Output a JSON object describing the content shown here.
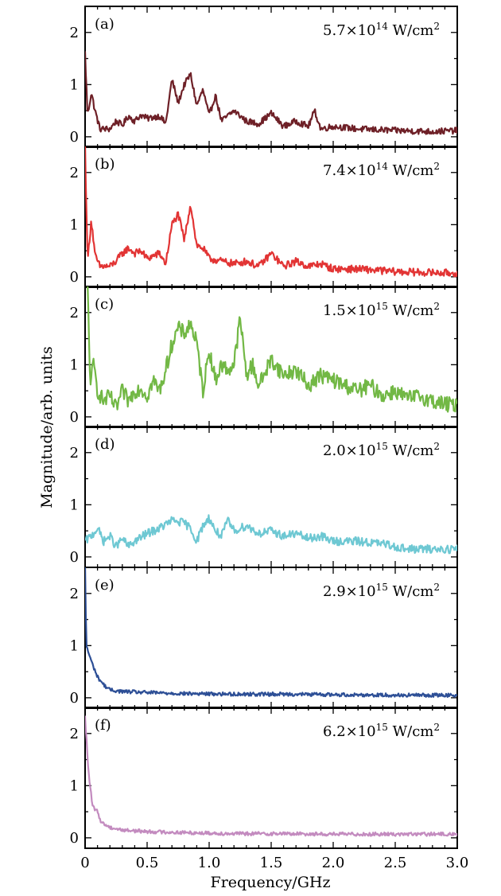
{
  "figure": {
    "ylabel": "Magnitude/arb. units",
    "xlabel": "Frequency/GHz"
  },
  "chart_data": [
    {
      "type": "line",
      "panel_label": "(a)",
      "intensity": "5.7×10",
      "intensity_exp": "14",
      "intensity_unit": " W/cm",
      "intensity_unit_exp": "2",
      "color": "#6e2027",
      "xlim": [
        0,
        3
      ],
      "ylim": [
        -0.2,
        2.5
      ],
      "x_ticks": [
        "0",
        "0.5",
        "1.0",
        "1.5",
        "2.0",
        "2.5",
        "3.0"
      ],
      "y_ticks": [
        "0",
        "1",
        "2"
      ],
      "anchors": [
        [
          0,
          1.6
        ],
        [
          0.02,
          0.4
        ],
        [
          0.05,
          0.85
        ],
        [
          0.08,
          0.5
        ],
        [
          0.12,
          0.15
        ],
        [
          0.2,
          0.15
        ],
        [
          0.25,
          0.3
        ],
        [
          0.3,
          0.22
        ],
        [
          0.35,
          0.4
        ],
        [
          0.4,
          0.3
        ],
        [
          0.45,
          0.42
        ],
        [
          0.5,
          0.35
        ],
        [
          0.6,
          0.4
        ],
        [
          0.65,
          0.25
        ],
        [
          0.7,
          1.1
        ],
        [
          0.75,
          0.65
        ],
        [
          0.8,
          1.0
        ],
        [
          0.85,
          1.2
        ],
        [
          0.9,
          0.6
        ],
        [
          0.95,
          0.9
        ],
        [
          1.0,
          0.4
        ],
        [
          1.05,
          0.8
        ],
        [
          1.1,
          0.3
        ],
        [
          1.2,
          0.5
        ],
        [
          1.3,
          0.3
        ],
        [
          1.4,
          0.25
        ],
        [
          1.5,
          0.45
        ],
        [
          1.6,
          0.2
        ],
        [
          1.7,
          0.3
        ],
        [
          1.8,
          0.2
        ],
        [
          1.85,
          0.5
        ],
        [
          1.9,
          0.15
        ],
        [
          2.0,
          0.2
        ],
        [
          2.2,
          0.15
        ],
        [
          2.5,
          0.12
        ],
        [
          2.8,
          0.1
        ],
        [
          3.0,
          0.12
        ]
      ],
      "noise": 0.06
    },
    {
      "type": "line",
      "panel_label": "(b)",
      "intensity": "7.4×10",
      "intensity_exp": "14",
      "intensity_unit": " W/cm",
      "intensity_unit_exp": "2",
      "color": "#e23434",
      "xlim": [
        0,
        3
      ],
      "ylim": [
        -0.2,
        2.5
      ],
      "x_ticks": [
        "0",
        "0.5",
        "1.0",
        "1.5",
        "2.0",
        "2.5",
        "3.0"
      ],
      "y_ticks": [
        "0",
        "1",
        "2"
      ],
      "anchors": [
        [
          0,
          2.5
        ],
        [
          0.02,
          0.3
        ],
        [
          0.05,
          1.1
        ],
        [
          0.08,
          0.4
        ],
        [
          0.12,
          0.2
        ],
        [
          0.2,
          0.2
        ],
        [
          0.25,
          0.3
        ],
        [
          0.3,
          0.45
        ],
        [
          0.35,
          0.55
        ],
        [
          0.4,
          0.45
        ],
        [
          0.45,
          0.5
        ],
        [
          0.5,
          0.35
        ],
        [
          0.6,
          0.45
        ],
        [
          0.65,
          0.25
        ],
        [
          0.7,
          1.0
        ],
        [
          0.75,
          1.2
        ],
        [
          0.8,
          0.7
        ],
        [
          0.85,
          1.4
        ],
        [
          0.9,
          0.6
        ],
        [
          0.95,
          0.55
        ],
        [
          1.0,
          0.35
        ],
        [
          1.1,
          0.3
        ],
        [
          1.2,
          0.25
        ],
        [
          1.3,
          0.3
        ],
        [
          1.4,
          0.2
        ],
        [
          1.5,
          0.45
        ],
        [
          1.6,
          0.2
        ],
        [
          1.7,
          0.3
        ],
        [
          1.8,
          0.2
        ],
        [
          1.9,
          0.25
        ],
        [
          2.0,
          0.15
        ],
        [
          2.2,
          0.15
        ],
        [
          2.5,
          0.1
        ],
        [
          2.8,
          0.08
        ],
        [
          3.0,
          0.07
        ]
      ],
      "noise": 0.07
    },
    {
      "type": "line",
      "panel_label": "(c)",
      "intensity": "1.5×10",
      "intensity_exp": "15",
      "intensity_unit": " W/cm",
      "intensity_unit_exp": "2",
      "color": "#72b845",
      "xlim": [
        0,
        3
      ],
      "ylim": [
        -0.2,
        2.5
      ],
      "x_ticks": [
        "0",
        "0.5",
        "1.0",
        "1.5",
        "2.0",
        "2.5",
        "3.0"
      ],
      "y_ticks": [
        "0",
        "1",
        "2"
      ],
      "anchors": [
        [
          0.02,
          2.5
        ],
        [
          0.04,
          0.7
        ],
        [
          0.07,
          1.0
        ],
        [
          0.1,
          0.5
        ],
        [
          0.15,
          0.3
        ],
        [
          0.2,
          0.4
        ],
        [
          0.25,
          0.15
        ],
        [
          0.3,
          0.5
        ],
        [
          0.35,
          0.3
        ],
        [
          0.4,
          0.5
        ],
        [
          0.45,
          0.55
        ],
        [
          0.5,
          0.4
        ],
        [
          0.55,
          0.7
        ],
        [
          0.6,
          0.5
        ],
        [
          0.65,
          0.9
        ],
        [
          0.7,
          1.4
        ],
        [
          0.75,
          1.7
        ],
        [
          0.8,
          1.6
        ],
        [
          0.85,
          1.8
        ],
        [
          0.9,
          1.4
        ],
        [
          0.95,
          0.5
        ],
        [
          1.0,
          1.3
        ],
        [
          1.05,
          0.7
        ],
        [
          1.1,
          1.0
        ],
        [
          1.15,
          0.9
        ],
        [
          1.2,
          1.0
        ],
        [
          1.25,
          1.9
        ],
        [
          1.3,
          0.8
        ],
        [
          1.35,
          1.0
        ],
        [
          1.4,
          0.6
        ],
        [
          1.5,
          1.1
        ],
        [
          1.6,
          0.8
        ],
        [
          1.7,
          0.9
        ],
        [
          1.8,
          0.6
        ],
        [
          1.9,
          0.8
        ],
        [
          2.0,
          0.7
        ],
        [
          2.1,
          0.6
        ],
        [
          2.2,
          0.5
        ],
        [
          2.3,
          0.6
        ],
        [
          2.4,
          0.4
        ],
        [
          2.5,
          0.5
        ],
        [
          2.6,
          0.35
        ],
        [
          2.7,
          0.4
        ],
        [
          2.8,
          0.3
        ],
        [
          2.9,
          0.25
        ],
        [
          3.0,
          0.2
        ]
      ],
      "noise": 0.15
    },
    {
      "type": "line",
      "panel_label": "(d)",
      "intensity": "2.0×10",
      "intensity_exp": "15",
      "intensity_unit": " W/cm",
      "intensity_unit_exp": "2",
      "color": "#6ec8d3",
      "xlim": [
        0,
        3
      ],
      "ylim": [
        -0.2,
        2.5
      ],
      "x_ticks": [
        "0",
        "0.5",
        "1.0",
        "1.5",
        "2.0",
        "2.5",
        "3.0"
      ],
      "y_ticks": [
        "0",
        "1",
        "2"
      ],
      "anchors": [
        [
          0,
          0.3
        ],
        [
          0.05,
          0.4
        ],
        [
          0.1,
          0.55
        ],
        [
          0.15,
          0.3
        ],
        [
          0.2,
          0.4
        ],
        [
          0.25,
          0.2
        ],
        [
          0.3,
          0.35
        ],
        [
          0.35,
          0.2
        ],
        [
          0.4,
          0.3
        ],
        [
          0.5,
          0.45
        ],
        [
          0.6,
          0.55
        ],
        [
          0.7,
          0.7
        ],
        [
          0.8,
          0.65
        ],
        [
          0.85,
          0.55
        ],
        [
          0.9,
          0.3
        ],
        [
          0.95,
          0.6
        ],
        [
          1.0,
          0.75
        ],
        [
          1.05,
          0.5
        ],
        [
          1.1,
          0.4
        ],
        [
          1.15,
          0.7
        ],
        [
          1.2,
          0.5
        ],
        [
          1.3,
          0.6
        ],
        [
          1.4,
          0.45
        ],
        [
          1.5,
          0.5
        ],
        [
          1.6,
          0.4
        ],
        [
          1.7,
          0.45
        ],
        [
          1.8,
          0.35
        ],
        [
          1.9,
          0.4
        ],
        [
          2.0,
          0.3
        ],
        [
          2.2,
          0.3
        ],
        [
          2.4,
          0.25
        ],
        [
          2.6,
          0.15
        ],
        [
          2.8,
          0.15
        ],
        [
          3.0,
          0.15
        ]
      ],
      "noise": 0.08
    },
    {
      "type": "line",
      "panel_label": "(e)",
      "intensity": "2.9×10",
      "intensity_exp": "15",
      "intensity_unit": " W/cm",
      "intensity_unit_exp": "2",
      "color": "#2d4f96",
      "xlim": [
        0,
        3
      ],
      "ylim": [
        -0.2,
        2.5
      ],
      "x_ticks": [
        "0",
        "0.5",
        "1.0",
        "1.5",
        "2.0",
        "2.5",
        "3.0"
      ],
      "y_ticks": [
        "0",
        "1",
        "2"
      ],
      "anchors": [
        [
          0,
          2.5
        ],
        [
          0.01,
          1.0
        ],
        [
          0.05,
          0.7
        ],
        [
          0.1,
          0.4
        ],
        [
          0.15,
          0.25
        ],
        [
          0.2,
          0.15
        ],
        [
          0.3,
          0.12
        ],
        [
          0.5,
          0.1
        ],
        [
          0.8,
          0.08
        ],
        [
          1.2,
          0.07
        ],
        [
          1.6,
          0.07
        ],
        [
          2.0,
          0.06
        ],
        [
          2.5,
          0.05
        ],
        [
          3.0,
          0.05
        ]
      ],
      "noise": 0.035
    },
    {
      "type": "line",
      "panel_label": "(f)",
      "intensity": "6.2×10",
      "intensity_exp": "15",
      "intensity_unit": " W/cm",
      "intensity_unit_exp": "2",
      "color": "#c38bbf",
      "xlim": [
        0,
        3
      ],
      "ylim": [
        -0.2,
        2.5
      ],
      "x_ticks": [
        "0",
        "0.5",
        "1.0",
        "1.5",
        "2.0",
        "2.5",
        "3.0"
      ],
      "y_ticks": [
        "0",
        "1",
        "2"
      ],
      "anchors": [
        [
          0,
          2.3
        ],
        [
          0.03,
          1.2
        ],
        [
          0.06,
          0.6
        ],
        [
          0.1,
          0.5
        ],
        [
          0.13,
          0.3
        ],
        [
          0.2,
          0.2
        ],
        [
          0.3,
          0.15
        ],
        [
          0.5,
          0.12
        ],
        [
          0.8,
          0.1
        ],
        [
          1.2,
          0.08
        ],
        [
          1.6,
          0.08
        ],
        [
          2.0,
          0.07
        ],
        [
          2.5,
          0.07
        ],
        [
          3.0,
          0.07
        ]
      ],
      "noise": 0.035
    }
  ]
}
